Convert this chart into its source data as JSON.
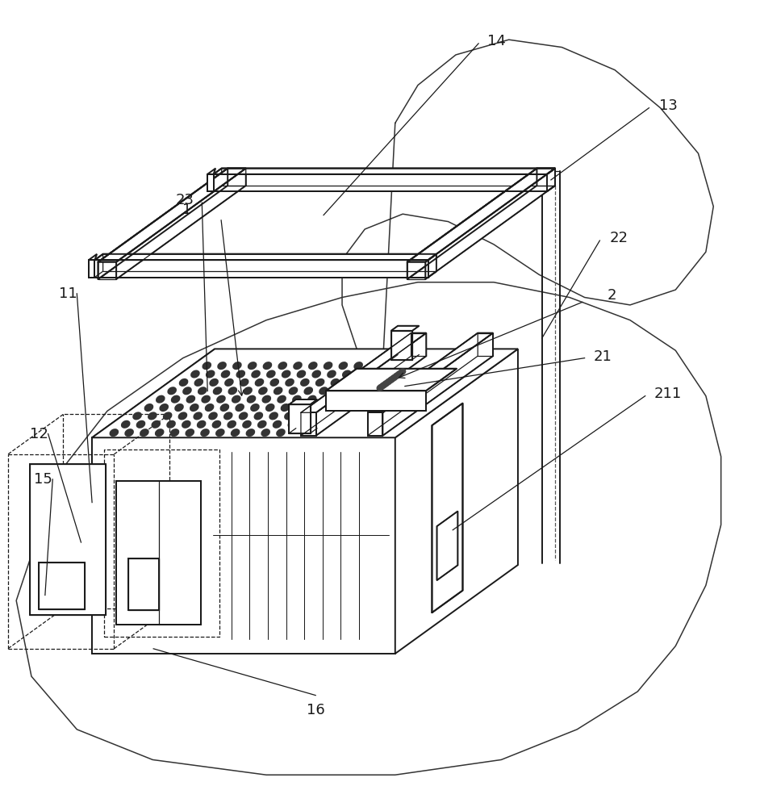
{
  "bg_color": "#ffffff",
  "lc": "#1a1a1a",
  "lw": 1.4,
  "tlw": 0.9,
  "fs": 13,
  "fig_w": 9.42,
  "fig_h": 10.0
}
